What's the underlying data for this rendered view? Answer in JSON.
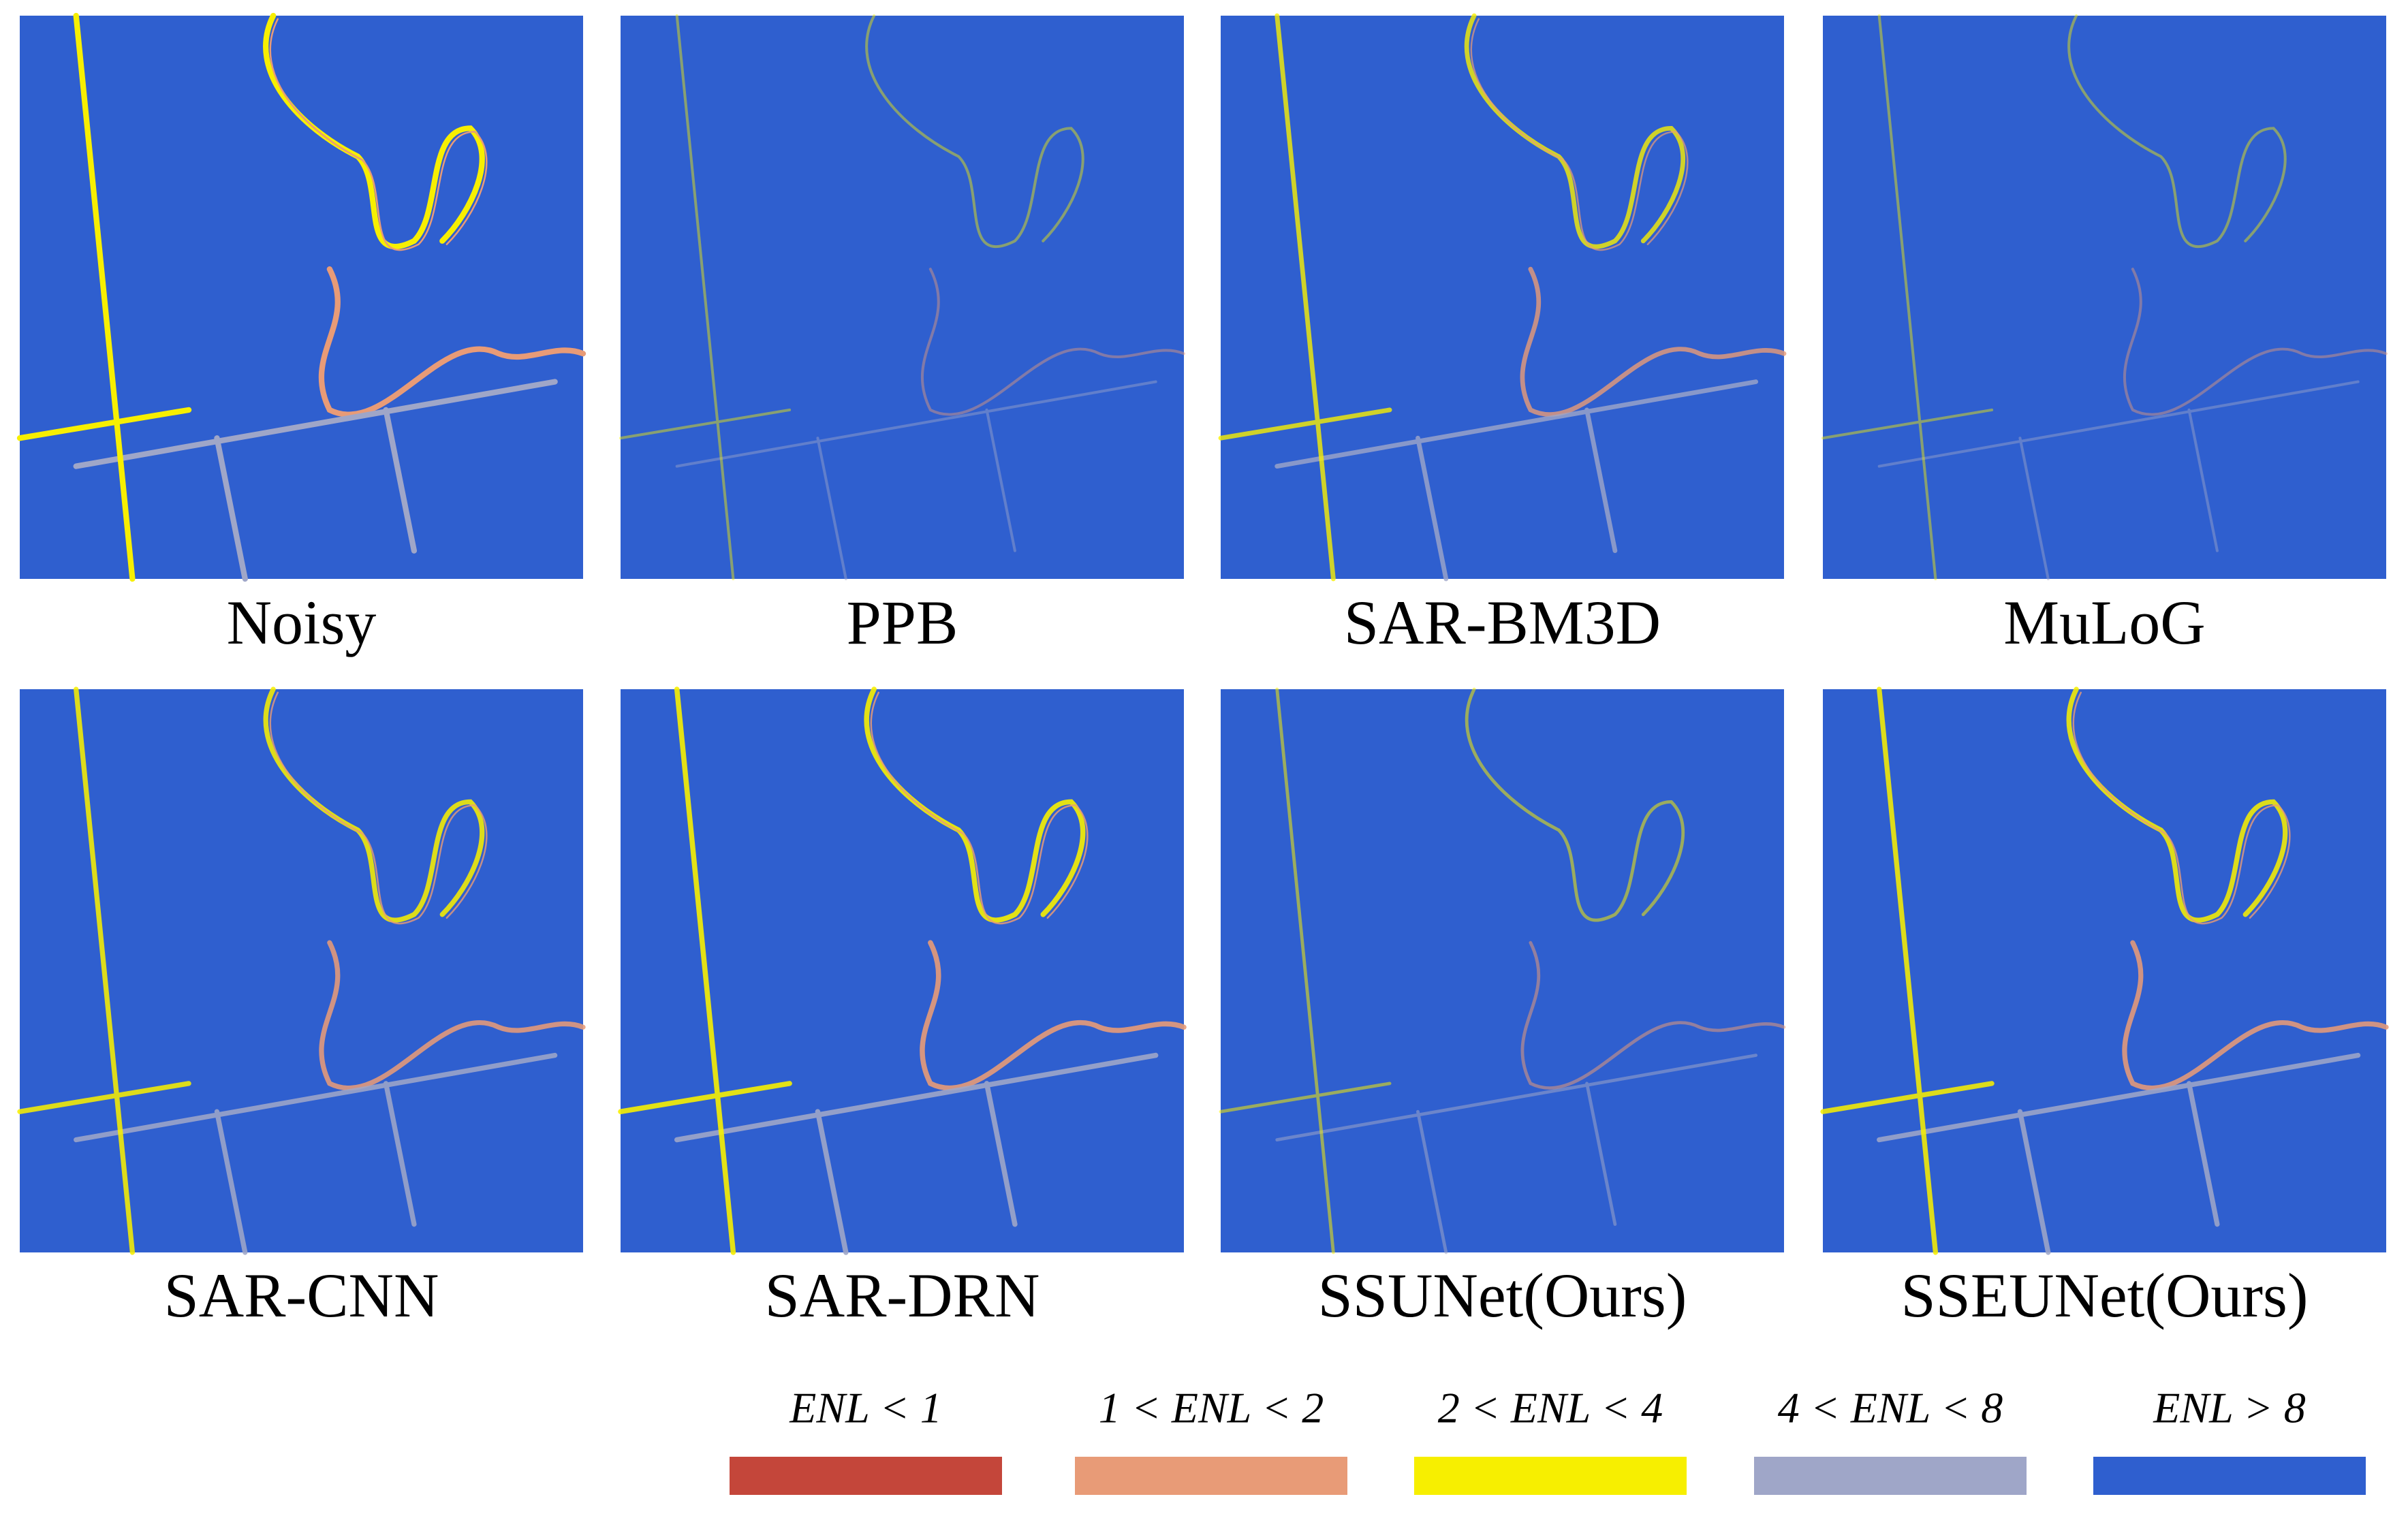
{
  "panels": [
    {
      "label": "Noisy"
    },
    {
      "label": "PPB"
    },
    {
      "label": "SAR-BM3D"
    },
    {
      "label": "MuLoG"
    },
    {
      "label": "SAR-CNN"
    },
    {
      "label": "SAR-DRN"
    },
    {
      "label": "SSUNet(Ours)"
    },
    {
      "label": "SSEUNet(Ours)"
    }
  ],
  "legend": [
    {
      "label": "ENL < 1",
      "color": "#c4463a"
    },
    {
      "label": "1 < ENL < 2",
      "color": "#e89b77"
    },
    {
      "label": "2 < ENL < 4",
      "color": "#f7ef00"
    },
    {
      "label": "4 < ENL < 8",
      "color": "#9fa6c8"
    },
    {
      "label": "ENL > 8",
      "color": "#2f5fcf"
    }
  ]
}
